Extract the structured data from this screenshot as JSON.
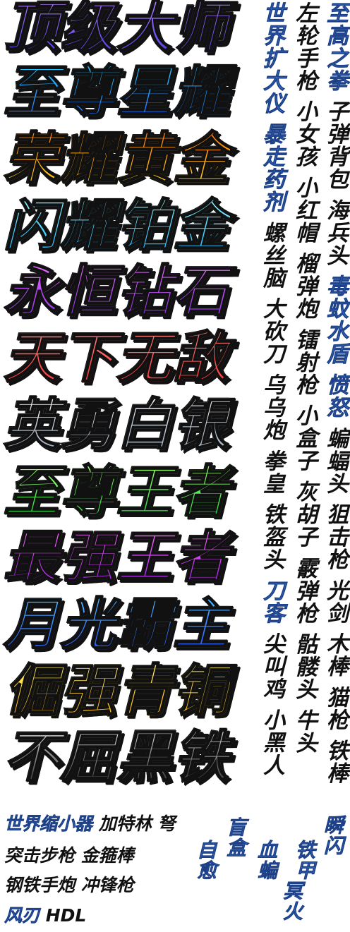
{
  "ranks": [
    {
      "label": "顶级大师",
      "colors": [
        "#4f3be6",
        "#b07bff"
      ]
    },
    {
      "label": "至尊星耀",
      "colors": [
        "#1f6bff",
        "#26c6ff"
      ]
    },
    {
      "label": "荣耀黄金",
      "colors": [
        "#ffd21c",
        "#ff7a00"
      ]
    },
    {
      "label": "闪耀铂金",
      "colors": [
        "#19b7ff",
        "#8ff6ff"
      ]
    },
    {
      "label": "永恒钻石",
      "colors": [
        "#8a2be2",
        "#e66bff"
      ]
    },
    {
      "label": "天下无敌",
      "colors": [
        "#ff3333",
        "#ff8080"
      ]
    },
    {
      "label": "英勇白银",
      "colors": [
        "#9aa7b6",
        "#f5f8fb"
      ]
    },
    {
      "label": "至尊王者",
      "colors": [
        "#18d63a",
        "#9dff6b"
      ]
    },
    {
      "label": "最强王者",
      "colors": [
        "#a11de6",
        "#ff63ff"
      ]
    },
    {
      "label": "月光霸主",
      "colors": [
        "#2a55ff",
        "#4bb8ff"
      ]
    },
    {
      "label": "倔强青铜",
      "colors": [
        "#ffb300",
        "#fff06b"
      ]
    },
    {
      "label": "不屈黑铁",
      "colors": [
        "#2c2c2c",
        "#d8d8d8"
      ]
    }
  ],
  "columns": {
    "col1": {
      "blue": "至高之拳",
      "black": "子弹背包 海兵头",
      "blue2": "毒蚊水盾 愤怒",
      "black2": "蝙蝠头 狙击枪 光剑 木棒 猫枪 铁棒"
    },
    "col2": {
      "black": "左轮手枪 小女孩 小红帽 榴弹炮 镭射枪 小盒子 灰胡子",
      "black2": "霰弹枪 骷髅头 牛头"
    },
    "col3": {
      "blue": "世界扩大仪 暴走药剂",
      "black": "螺丝脑 大砍刀 乌乌炮 拳皇 铁盔头",
      "blue2": "刀客",
      "black2": "尖叫鸡 小黑人"
    }
  },
  "bottom": {
    "line1_blue": "世界缩小器",
    "line1_black": "加特林 弩",
    "line2": "突击步枪 金箍棒",
    "line3": "钢铁手炮 冲锋枪",
    "line4_blue": "风刃",
    "line4_black": "HDL",
    "v_blind_box": "盲盒",
    "v_heal": "自愈",
    "v_blood_bat": "血蝙",
    "v_ming_fire": "冥火",
    "v_flash": "瞬闪",
    "v_armor": "铁甲"
  }
}
